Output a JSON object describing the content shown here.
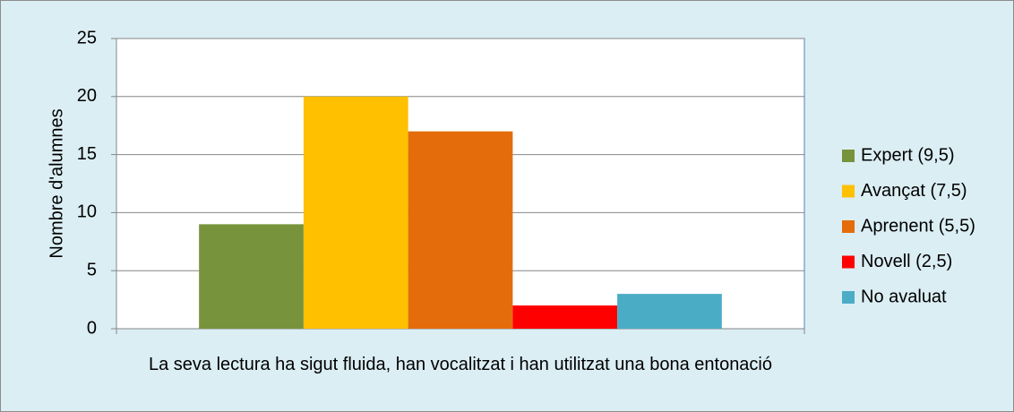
{
  "chart_data": {
    "type": "bar",
    "categories": [
      "La seva lectura ha sigut fluida, han vocalitzat i han utilitzat una bona entonació"
    ],
    "series": [
      {
        "name": "Expert (9,5)",
        "color": "#77933c",
        "values": [
          9
        ]
      },
      {
        "name": "Avançat (7,5)",
        "color": "#ffc000",
        "values": [
          20
        ]
      },
      {
        "name": "Aprenent (5,5)",
        "color": "#e46c0a",
        "values": [
          17
        ]
      },
      {
        "name": "Novell (2,5)",
        "color": "#ff0000",
        "values": [
          2
        ]
      },
      {
        "name": "No avaluat",
        "color": "#4bacc6",
        "values": [
          3
        ]
      }
    ],
    "y_label": "Nombre d'alumnes",
    "ylim": [
      0,
      25
    ],
    "yticks": [
      0,
      5,
      10,
      15,
      20,
      25
    ],
    "grid": true,
    "legend": "right"
  }
}
